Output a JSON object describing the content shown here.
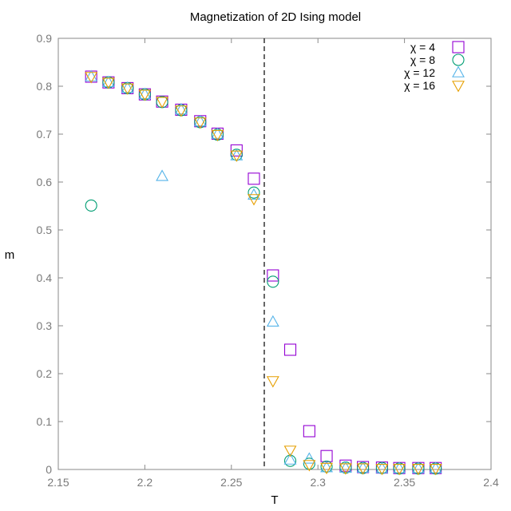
{
  "chart_data": {
    "type": "scatter",
    "title": "Magnetization of 2D Ising model",
    "xlabel": "T",
    "ylabel": "m",
    "xlim": [
      2.15,
      2.4
    ],
    "ylim": [
      0,
      0.9
    ],
    "xticks": [
      "2.15",
      "2.2",
      "2.25",
      "2.3",
      "2.35",
      "2.4"
    ],
    "yticks": [
      "0",
      "0.1",
      "0.2",
      "0.3",
      "0.4",
      "0.5",
      "0.6",
      "0.7",
      "0.8",
      "0.9"
    ],
    "grid": false,
    "legend_position": "top-right",
    "vertical_line": {
      "x": 2.269,
      "style": "dashed"
    },
    "series": [
      {
        "name": "χ = 4",
        "marker": "square",
        "color": "#9400d3",
        "points": [
          [
            2.169,
            0.82
          ],
          [
            2.179,
            0.808
          ],
          [
            2.19,
            0.796
          ],
          [
            2.2,
            0.783
          ],
          [
            2.21,
            0.768
          ],
          [
            2.221,
            0.751
          ],
          [
            2.232,
            0.727
          ],
          [
            2.242,
            0.701
          ],
          [
            2.253,
            0.666
          ],
          [
            2.263,
            0.607
          ],
          [
            2.274,
            0.405
          ],
          [
            2.284,
            0.25
          ],
          [
            2.295,
            0.08
          ],
          [
            2.305,
            0.028
          ],
          [
            2.316,
            0.008
          ],
          [
            2.326,
            0.005
          ],
          [
            2.337,
            0.004
          ],
          [
            2.347,
            0.003
          ],
          [
            2.358,
            0.003
          ],
          [
            2.368,
            0.003
          ]
        ]
      },
      {
        "name": "χ = 8",
        "marker": "circle",
        "color": "#009e73",
        "points": [
          [
            2.169,
            0.551
          ],
          [
            2.179,
            0.808
          ],
          [
            2.19,
            0.796
          ],
          [
            2.2,
            0.783
          ],
          [
            2.21,
            0.767
          ],
          [
            2.221,
            0.75
          ],
          [
            2.232,
            0.725
          ],
          [
            2.242,
            0.699
          ],
          [
            2.253,
            0.657
          ],
          [
            2.263,
            0.578
          ],
          [
            2.274,
            0.392
          ],
          [
            2.284,
            0.018
          ],
          [
            2.295,
            0.012
          ],
          [
            2.305,
            0.006
          ],
          [
            2.316,
            0.004
          ],
          [
            2.326,
            0.003
          ],
          [
            2.337,
            0.003
          ],
          [
            2.347,
            0.002
          ],
          [
            2.358,
            0.002
          ],
          [
            2.368,
            0.002
          ]
        ]
      },
      {
        "name": "χ = 12",
        "marker": "triangle-up",
        "color": "#56b4e9",
        "points": [
          [
            2.169,
            0.82
          ],
          [
            2.179,
            0.808
          ],
          [
            2.19,
            0.796
          ],
          [
            2.2,
            0.783
          ],
          [
            2.21,
            0.612
          ],
          [
            2.221,
            0.751
          ],
          [
            2.232,
            0.726
          ],
          [
            2.242,
            0.7
          ],
          [
            2.253,
            0.655
          ],
          [
            2.263,
            0.573
          ],
          [
            2.274,
            0.308
          ],
          [
            2.284,
            0.02
          ],
          [
            2.295,
            0.022
          ],
          [
            2.305,
            0.004
          ],
          [
            2.316,
            0.003
          ],
          [
            2.326,
            0.003
          ],
          [
            2.337,
            0.002
          ],
          [
            2.347,
            0.002
          ],
          [
            2.358,
            0.002
          ],
          [
            2.368,
            0.002
          ]
        ]
      },
      {
        "name": "χ = 16",
        "marker": "triangle-down",
        "color": "#e69f00",
        "points": [
          [
            2.169,
            0.82
          ],
          [
            2.179,
            0.808
          ],
          [
            2.19,
            0.796
          ],
          [
            2.2,
            0.783
          ],
          [
            2.21,
            0.768
          ],
          [
            2.221,
            0.75
          ],
          [
            2.232,
            0.725
          ],
          [
            2.242,
            0.699
          ],
          [
            2.253,
            0.656
          ],
          [
            2.263,
            0.565
          ],
          [
            2.274,
            0.185
          ],
          [
            2.284,
            0.04
          ],
          [
            2.295,
            0.01
          ],
          [
            2.305,
            0.004
          ],
          [
            2.316,
            0.003
          ],
          [
            2.326,
            0.003
          ],
          [
            2.337,
            0.002
          ],
          [
            2.347,
            0.002
          ],
          [
            2.358,
            0.002
          ],
          [
            2.368,
            0.002
          ]
        ]
      }
    ]
  }
}
